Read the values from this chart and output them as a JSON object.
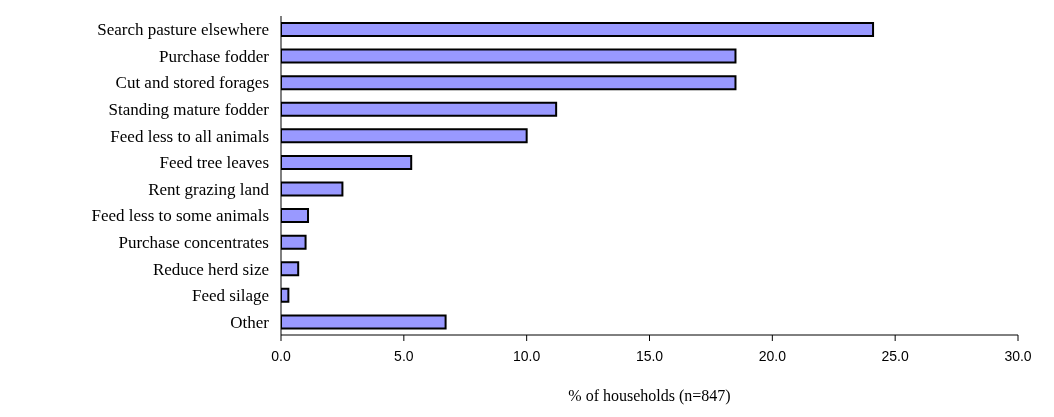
{
  "chart_data": {
    "type": "bar",
    "orientation": "horizontal",
    "xlabel": "% of households (n=847)",
    "categories": [
      "Search pasture elsewhere",
      "Purchase fodder",
      "Cut and stored forages",
      "Standing mature fodder",
      "Feed less to all animals",
      "Feed tree leaves",
      "Rent grazing land",
      "Feed less to some animals",
      "Purchase concentrates",
      "Reduce herd size",
      "Feed silage",
      "Other"
    ],
    "values": [
      24.1,
      18.5,
      18.5,
      11.2,
      10.0,
      5.3,
      2.5,
      1.1,
      1.0,
      0.7,
      0.3,
      6.7
    ],
    "color": "#9999ff",
    "xlim": [
      0,
      30
    ],
    "xticks": [
      {
        "value": 0,
        "label": "0.0"
      },
      {
        "value": 5,
        "label": "5.0"
      },
      {
        "value": 10,
        "label": "10.0"
      },
      {
        "value": 15,
        "label": "15.0"
      },
      {
        "value": 20,
        "label": "20.0"
      },
      {
        "value": 25,
        "label": "25.0"
      },
      {
        "value": 30,
        "label": "30.0"
      }
    ],
    "grid": false,
    "legend": false
  }
}
